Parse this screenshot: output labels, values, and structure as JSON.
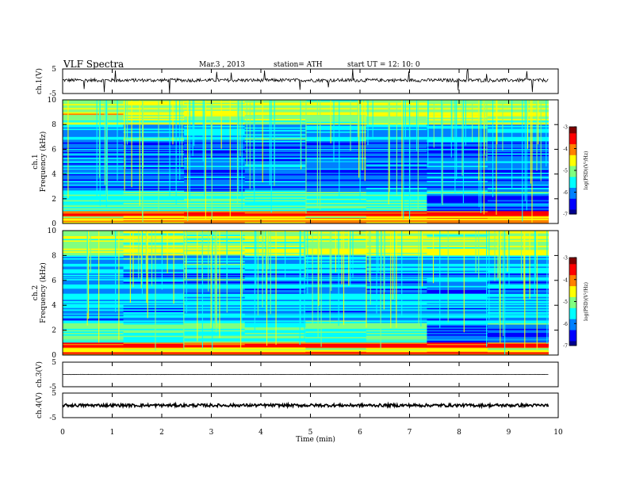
{
  "header": {
    "title": "VLF  Spectra",
    "date": "Mar.3   , 2013",
    "station": "station= ATH",
    "start": "start  UT  =    12: 10: 0"
  },
  "chart_data": [
    {
      "type": "line",
      "name": "ch1-waveform",
      "ylabel": "ch.1(V)",
      "yticks": [
        "5",
        "-5"
      ],
      "ylim": [
        -5,
        5
      ],
      "description_level": 0.2
    },
    {
      "type": "heatmap",
      "name": "ch1-spectrogram",
      "ylabel_line1": "ch.1",
      "ylabel_line2": "Frequency  (kHz)",
      "yticks": [
        "10",
        "8",
        "6",
        "4",
        "2",
        "0"
      ],
      "ylim": [
        0,
        10
      ],
      "xlim": [
        0,
        10
      ],
      "data_end_min": 9.8,
      "colorbar": {
        "label": "log(PSD)(V²/Hz)",
        "ticks": [
          "-3",
          "-4",
          "-5",
          "-6",
          "-7"
        ],
        "range": [
          -7,
          -3
        ]
      }
    },
    {
      "type": "heatmap",
      "name": "ch2-spectrogram",
      "ylabel_line1": "ch.2",
      "ylabel_line2": "Frequency  (kHz)",
      "yticks": [
        "10",
        "8",
        "6",
        "4",
        "2",
        "0"
      ],
      "ylim": [
        0,
        10
      ],
      "xlim": [
        0,
        10
      ],
      "data_end_min": 9.8,
      "colorbar": {
        "label": "log(PSD)(V²/Hz)",
        "ticks": [
          "-3",
          "-4",
          "-5",
          "-6",
          "-7"
        ],
        "range": [
          -7,
          -3
        ]
      }
    },
    {
      "type": "line",
      "name": "ch3-waveform",
      "ylabel": "ch.3(V)",
      "yticks": [
        "5",
        "-5"
      ],
      "ylim": [
        -5,
        5
      ]
    },
    {
      "type": "line",
      "name": "ch4-waveform",
      "ylabel": "ch.4(V)",
      "yticks": [
        "5",
        "-5"
      ],
      "ylim": [
        -5,
        5
      ]
    }
  ],
  "xaxis": {
    "label": "Time  (min)",
    "ticks": [
      "0",
      "1",
      "2",
      "3",
      "4",
      "5",
      "6",
      "7",
      "8",
      "9",
      "10"
    ],
    "xlim": [
      0,
      10
    ]
  },
  "colors": {
    "jet": [
      "#00008f",
      "#0000ff",
      "#0080ff",
      "#00ffff",
      "#80ff80",
      "#ffff00",
      "#ff8000",
      "#ff0000",
      "#800000"
    ]
  }
}
